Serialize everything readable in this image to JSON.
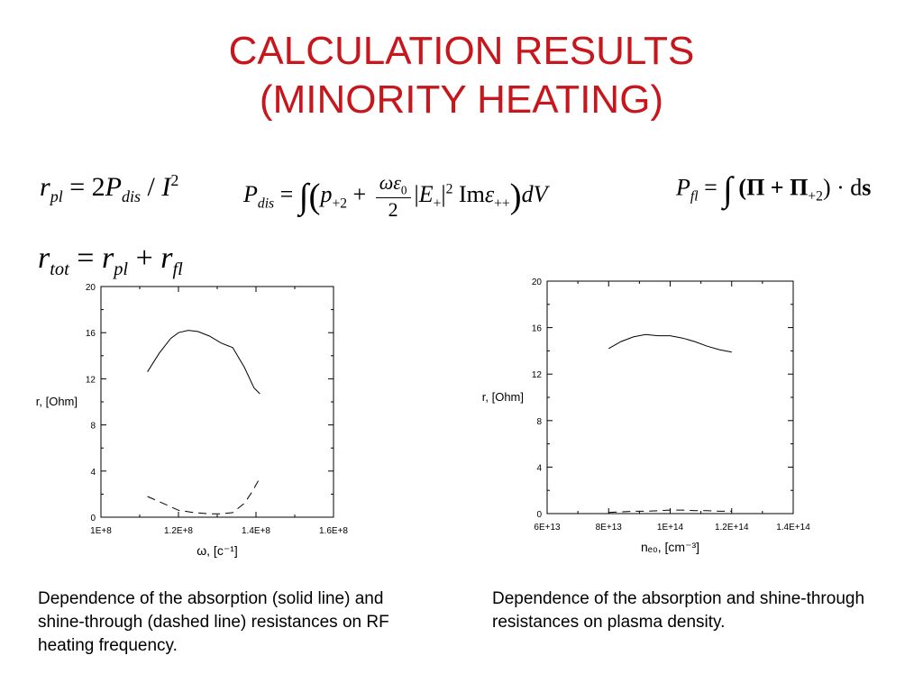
{
  "title": {
    "line1": "CALCULATION RESULTS",
    "line2": "(MINORITY HEATING)"
  },
  "equations": {
    "eq1": {
      "lhs": "r",
      "lhs_sub": "pl",
      "rhs_coef": "= 2",
      "P": "P",
      "P_sub": "dis",
      "slash": " / ",
      "I": "I",
      "I_sup": "2"
    },
    "eq2": {
      "P": "P",
      "P_sub": "dis",
      "eq": " = ",
      "integral": "∫",
      "lparen": "(",
      "p": "p",
      "p_sub": "+2",
      "plus": " + ",
      "frac_num": "ωε",
      "frac_num_sub": "0",
      "frac_den": "2",
      "bar1": "|",
      "E": "E",
      "E_sub": "+",
      "bar2": "|",
      "E_sup": "2",
      "im": " Im",
      "eps": "ε",
      "eps_sub": "++",
      "rparen": ")",
      "dV": "dV"
    },
    "eq3": {
      "P": "P",
      "P_sub": "fl",
      "eq": " = ",
      "integral": "∫",
      "body": " (Π + Π",
      "pi_sub": "+2",
      "rest": ") · d",
      "s": "s"
    },
    "eq4": {
      "r": "r",
      "r_sub": "tot",
      "eq": " = ",
      "r2": "r",
      "r2_sub": "pl",
      "plus": " + ",
      "r3": "r",
      "r3_sub": "fl"
    }
  },
  "chart_data": [
    {
      "type": "line",
      "xlabel": "ω, [c⁻¹]",
      "ylabel": "r, [Ohm]",
      "xlim": [
        100000000,
        160000000
      ],
      "ylim": [
        0,
        20
      ],
      "xticks": [
        100000000,
        120000000,
        140000000,
        160000000
      ],
      "xtick_labels": [
        "1E+8",
        "1.2E+8",
        "1.4E+8",
        "1.6E+8"
      ],
      "yticks": [
        0,
        4,
        8,
        12,
        16,
        20
      ],
      "ytick_labels": [
        "0",
        "4",
        "8",
        "12",
        "16",
        "20"
      ],
      "series": [
        {
          "style": "solid",
          "x": [
            112000000,
            115000000,
            118000000,
            120000000,
            122500000,
            125000000,
            128000000,
            131000000,
            134000000,
            137000000,
            139500000,
            141000000
          ],
          "y": [
            12.6,
            14.2,
            15.5,
            16.0,
            16.2,
            16.1,
            15.7,
            15.1,
            14.7,
            13.0,
            11.2,
            10.7
          ]
        },
        {
          "style": "dashed",
          "x": [
            112000000,
            116000000,
            120000000,
            124000000,
            128000000,
            131000000,
            134000000,
            137000000,
            139000000,
            141000000
          ],
          "y": [
            1.8,
            1.2,
            0.6,
            0.4,
            0.3,
            0.3,
            0.4,
            1.2,
            2.2,
            3.4
          ]
        }
      ]
    },
    {
      "type": "line",
      "xlabel": "nₑ₀, [cm⁻³]",
      "ylabel": "r, [Ohm]",
      "xlim": [
        60000000000000,
        140000000000000
      ],
      "ylim": [
        0,
        20
      ],
      "xticks": [
        60000000000000,
        80000000000000,
        100000000000000,
        120000000000000,
        140000000000000
      ],
      "xtick_labels": [
        "6E+13",
        "8E+13",
        "1E+14",
        "1.2E+14",
        "1.4E+14"
      ],
      "yticks": [
        0,
        4,
        8,
        12,
        16,
        20
      ],
      "ytick_labels": [
        "0",
        "4",
        "8",
        "12",
        "16",
        "20"
      ],
      "series": [
        {
          "style": "solid",
          "x": [
            80000000000000,
            84000000000000,
            88000000000000,
            92000000000000,
            96000000000000,
            100000000000000,
            104000000000000,
            108000000000000,
            112000000000000,
            116000000000000,
            120000000000000
          ],
          "y": [
            14.2,
            14.8,
            15.2,
            15.4,
            15.3,
            15.3,
            15.1,
            14.8,
            14.4,
            14.1,
            13.9
          ]
        },
        {
          "style": "dashed",
          "x": [
            80000000000000,
            84000000000000,
            88000000000000,
            92000000000000,
            96000000000000,
            100000000000000,
            104000000000000,
            108000000000000,
            112000000000000,
            116000000000000,
            120000000000000
          ],
          "y": [
            0.1,
            0.15,
            0.2,
            0.2,
            0.25,
            0.3,
            0.3,
            0.25,
            0.25,
            0.2,
            0.2
          ]
        }
      ]
    }
  ],
  "captions": {
    "left": "Dependence of the absorption (solid line) and shine-through (dashed line) resistances on RF heating frequency.",
    "right": "Dependence of the absorption and shine-through resistances on plasma density."
  }
}
